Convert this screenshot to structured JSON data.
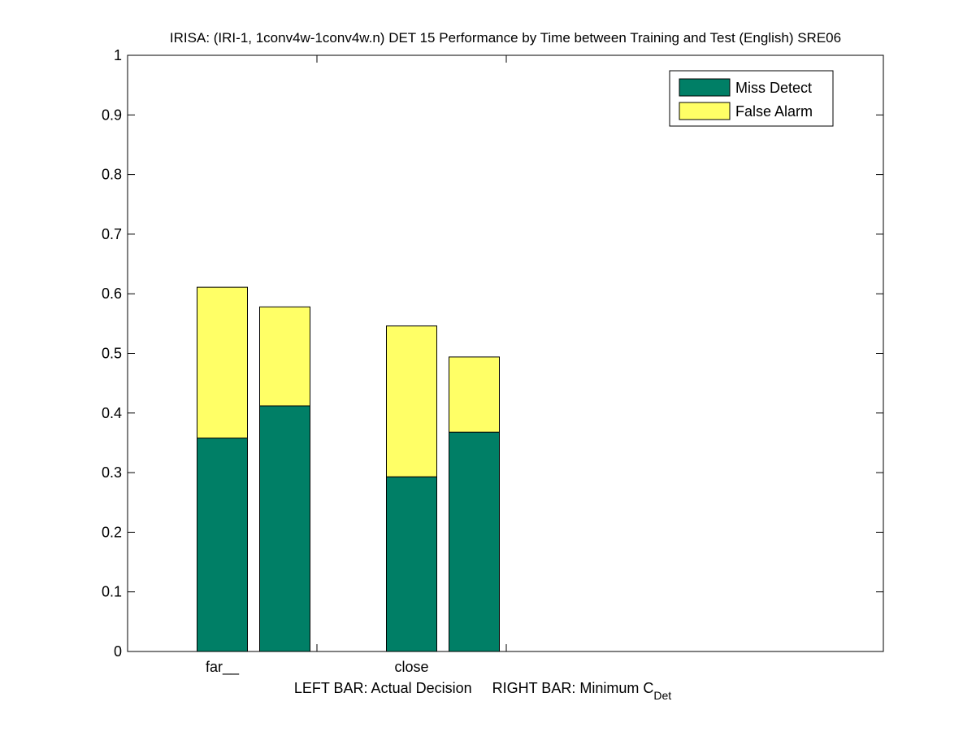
{
  "chart_data": {
    "type": "bar",
    "stacked": true,
    "title": "IRISA: (IRI-1, 1conv4w-1conv4w.n) DET 15 Performance by Time between Training and Test (English) SRE06",
    "categories": [
      "far__",
      "close"
    ],
    "ylim": [
      0,
      1
    ],
    "yticks": [
      0,
      0.1,
      0.2,
      0.3,
      0.4,
      0.5,
      0.6,
      0.7,
      0.8,
      0.9,
      1
    ],
    "ytick_labels": [
      "0",
      "0.1",
      "0.2",
      "0.3",
      "0.4",
      "0.5",
      "0.6",
      "0.7",
      "0.8",
      "0.9",
      "1"
    ],
    "xlabel_left": "LEFT BAR: Actual Decision",
    "xlabel_right_main": "RIGHT BAR: Minimum C",
    "xlabel_right_sub": "Det",
    "legend_position": "top-right",
    "grid": false,
    "series": [
      {
        "name": "Miss Detect",
        "color": "#007f66",
        "values": [
          [
            0.358,
            0.412
          ],
          [
            0.293,
            0.368
          ]
        ]
      },
      {
        "name": "False Alarm",
        "color": "#ffff66",
        "values": [
          [
            0.253,
            0.166
          ],
          [
            0.253,
            0.126
          ]
        ]
      }
    ]
  }
}
